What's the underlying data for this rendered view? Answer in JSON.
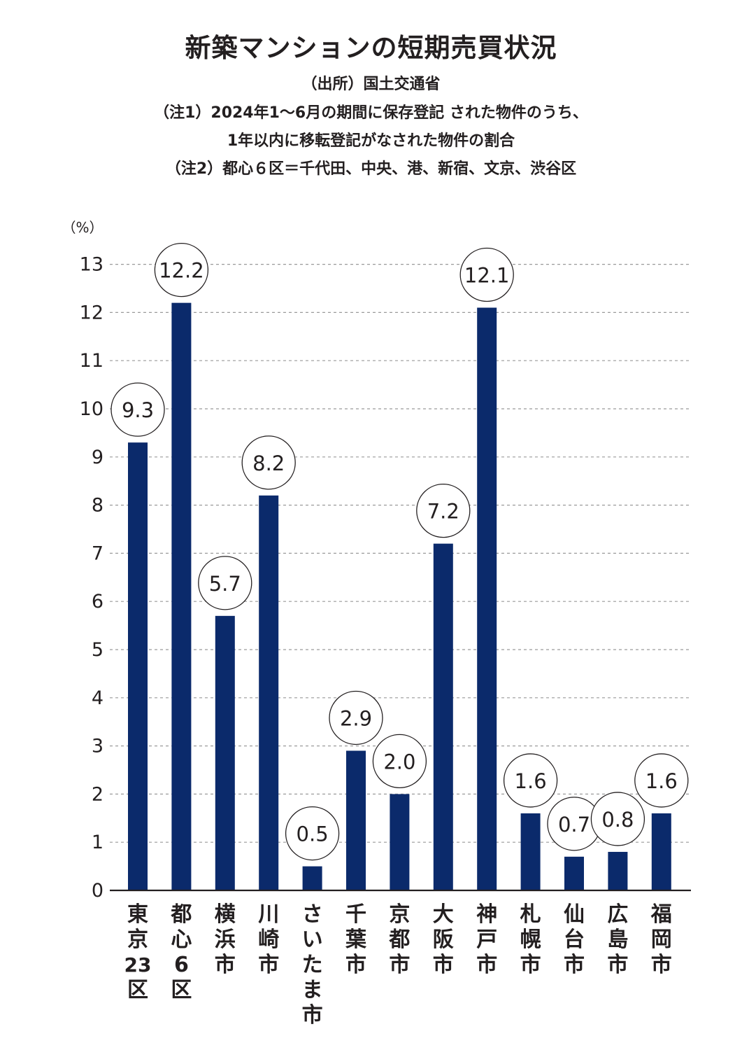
{
  "title": "新築マンションの短期売買状況",
  "notes": [
    "（出所）国土交通省",
    "（注1）2024年1～6月の期間に保存登記 された物件のうち、",
    "1年以内に移転登記がなされた物件の割合",
    "（注2）都心６区＝千代田、中央、港、新宿、文京、渋谷区"
  ],
  "colors": {
    "bar": "#0b2a6b",
    "grid": "#9a9a9a",
    "text": "#231f20"
  },
  "chart_data": {
    "type": "bar",
    "ylabel": "（%）",
    "ylim": [
      0,
      13
    ],
    "yticks": [
      0,
      1,
      2,
      3,
      4,
      5,
      6,
      7,
      8,
      9,
      10,
      11,
      12,
      13
    ],
    "grid": true,
    "categories": [
      [
        "東",
        "京",
        "23",
        "区"
      ],
      [
        "都",
        "心",
        "6",
        "区"
      ],
      [
        "横",
        "浜",
        "市"
      ],
      [
        "川",
        "崎",
        "市"
      ],
      [
        "さ",
        "い",
        "た",
        "ま",
        "市"
      ],
      [
        "千",
        "葉",
        "市"
      ],
      [
        "京",
        "都",
        "市"
      ],
      [
        "大",
        "阪",
        "市"
      ],
      [
        "神",
        "戸",
        "市"
      ],
      [
        "札",
        "幌",
        "市"
      ],
      [
        "仙",
        "台",
        "市"
      ],
      [
        "広",
        "島",
        "市"
      ],
      [
        "福",
        "岡",
        "市"
      ]
    ],
    "values": [
      9.3,
      12.2,
      5.7,
      8.2,
      0.5,
      2.9,
      2.0,
      7.2,
      12.1,
      1.6,
      0.7,
      0.8,
      1.6
    ],
    "value_labels": [
      "9.3",
      "12.2",
      "5.7",
      "8.2",
      "0.5",
      "2.9",
      "2.0",
      "7.2",
      "12.1",
      "1.6",
      "0.7",
      "0.8",
      "1.6"
    ]
  }
}
